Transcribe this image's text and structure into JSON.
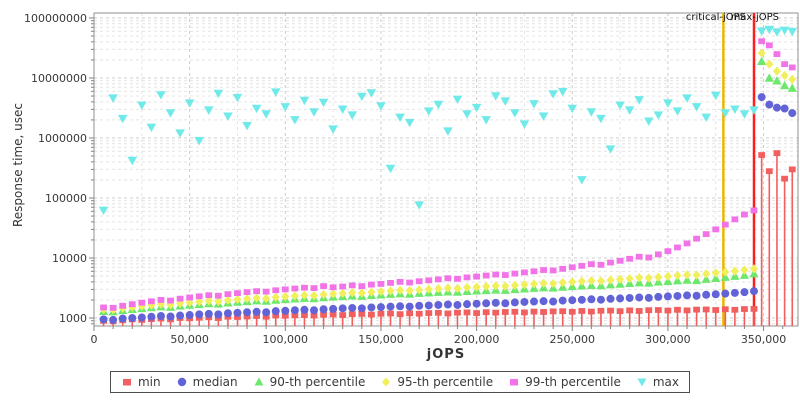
{
  "chart": {
    "y_axis_title": "Response time, usec",
    "x_axis_title": "jOPS",
    "x_ticks": [
      "0",
      "50,000",
      "100,000",
      "150,000",
      "200,000",
      "250,000",
      "300,000",
      "350,000"
    ],
    "y_ticks": [
      "1000",
      "10000",
      "100000",
      "1000000",
      "10000000",
      "100000000"
    ],
    "markers": {
      "critical": {
        "label": "critical-jOPS",
        "jops": 329000,
        "color": "#edb500"
      },
      "max": {
        "label": "max-jOPS",
        "jops": 345000,
        "color": "#fb1f1f"
      }
    },
    "colors": {
      "grid_major": "#cccccc",
      "grid_minor": "#e4e4e4",
      "plot_border": "#909090",
      "tick_text": "#383838"
    }
  },
  "chart_data": {
    "type": "scatter",
    "title": "",
    "xlabel": "jOPS",
    "ylabel": "Response time, usec",
    "y_scale": "log",
    "x_range": [
      0,
      368000
    ],
    "y_range_log": [
      736,
      121000000
    ],
    "x_major_tick_step": 50000,
    "x_minor_tick_step": 10000,
    "grid": true,
    "legend_position": "bottom",
    "vlines": [
      {
        "name": "critical-jOPS",
        "x": 329000,
        "color": "#edb500"
      },
      {
        "name": "max-jOPS",
        "x": 345000,
        "color": "#fb1f1f"
      }
    ],
    "x": [
      5000,
      10000,
      15000,
      20000,
      25000,
      30000,
      35000,
      40000,
      45000,
      50000,
      55000,
      60000,
      65000,
      70000,
      75000,
      80000,
      85000,
      90000,
      95000,
      100000,
      105000,
      110000,
      115000,
      120000,
      125000,
      130000,
      135000,
      140000,
      145000,
      150000,
      155000,
      160000,
      165000,
      170000,
      175000,
      180000,
      185000,
      190000,
      195000,
      200000,
      205000,
      210000,
      215000,
      220000,
      225000,
      230000,
      235000,
      240000,
      245000,
      250000,
      255000,
      260000,
      265000,
      270000,
      275000,
      280000,
      285000,
      290000,
      295000,
      300000,
      305000,
      310000,
      315000,
      320000,
      325000,
      330000,
      335000,
      340000,
      345000,
      349000,
      353000,
      357000,
      361000,
      365000
    ],
    "series": [
      {
        "name": "min",
        "marker": "square",
        "stem": true,
        "color": "#f25f5f",
        "values": [
          900,
          880,
          920,
          950,
          930,
          960,
          980,
          950,
          1000,
          990,
          1010,
          1030,
          1000,
          1050,
          1040,
          1060,
          1080,
          1050,
          1100,
          1090,
          1110,
          1120,
          1100,
          1130,
          1150,
          1120,
          1160,
          1170,
          1140,
          1180,
          1190,
          1160,
          1200,
          1180,
          1210,
          1220,
          1190,
          1230,
          1240,
          1210,
          1250,
          1230,
          1260,
          1270,
          1240,
          1280,
          1260,
          1290,
          1300,
          1270,
          1310,
          1280,
          1320,
          1330,
          1300,
          1340,
          1310,
          1350,
          1360,
          1330,
          1370,
          1340,
          1380,
          1390,
          1360,
          1400,
          1370,
          1410,
          1420,
          520000,
          280000,
          560000,
          210000,
          300000
        ]
      },
      {
        "name": "median",
        "marker": "circle",
        "stem": false,
        "color": "#6363d8",
        "values": [
          950,
          930,
          980,
          1000,
          1020,
          1050,
          1080,
          1060,
          1100,
          1120,
          1150,
          1170,
          1150,
          1200,
          1220,
          1250,
          1270,
          1250,
          1300,
          1320,
          1350,
          1370,
          1350,
          1400,
          1420,
          1450,
          1470,
          1450,
          1500,
          1520,
          1550,
          1570,
          1550,
          1600,
          1620,
          1650,
          1680,
          1650,
          1700,
          1730,
          1760,
          1790,
          1760,
          1820,
          1850,
          1880,
          1910,
          1880,
          1950,
          1980,
          2010,
          2050,
          2020,
          2090,
          2120,
          2160,
          2200,
          2170,
          2250,
          2290,
          2330,
          2380,
          2350,
          2440,
          2490,
          2550,
          2620,
          2700,
          2800,
          4800000,
          3600000,
          3200000,
          3100000,
          2600000
        ]
      },
      {
        "name": "90-th percentile",
        "marker": "triangle-up",
        "stem": false,
        "color": "#6de86d",
        "values": [
          1300,
          1280,
          1350,
          1400,
          1450,
          1500,
          1550,
          1520,
          1600,
          1650,
          1700,
          1750,
          1720,
          1800,
          1850,
          1900,
          1950,
          1920,
          2000,
          2050,
          2100,
          2150,
          2120,
          2200,
          2250,
          2300,
          2350,
          2320,
          2400,
          2450,
          2500,
          2550,
          2520,
          2600,
          2650,
          2700,
          2750,
          2720,
          2800,
          2850,
          2900,
          2950,
          2920,
          3000,
          3080,
          3150,
          3220,
          3180,
          3300,
          3380,
          3450,
          3520,
          3480,
          3600,
          3700,
          3800,
          3900,
          3850,
          4000,
          4100,
          4200,
          4300,
          4250,
          4450,
          4600,
          4800,
          5000,
          5200,
          5500,
          19000000,
          10000000,
          9000000,
          7500000,
          6800000
        ]
      },
      {
        "name": "95-th percentile",
        "marker": "diamond",
        "stem": false,
        "color": "#f1ef5a",
        "values": [
          1400,
          1380,
          1460,
          1520,
          1580,
          1640,
          1700,
          1660,
          1750,
          1810,
          1870,
          1930,
          1890,
          1980,
          2040,
          2100,
          2160,
          2120,
          2220,
          2280,
          2340,
          2400,
          2360,
          2460,
          2520,
          2580,
          2650,
          2610,
          2700,
          2760,
          2830,
          2900,
          2860,
          2950,
          3020,
          3090,
          3160,
          3120,
          3220,
          3290,
          3360,
          3440,
          3400,
          3500,
          3600,
          3700,
          3800,
          3750,
          3900,
          4000,
          4100,
          4200,
          4150,
          4300,
          4420,
          4550,
          4700,
          4640,
          4800,
          4950,
          5100,
          5250,
          5200,
          5450,
          5650,
          5850,
          6050,
          6300,
          6600,
          26000000,
          17000000,
          13000000,
          11000000,
          9500000
        ]
      },
      {
        "name": "99-th percentile",
        "marker": "square",
        "stem": false,
        "color": "#f272e8",
        "values": [
          1500,
          1480,
          1600,
          1700,
          1800,
          1900,
          2000,
          1950,
          2100,
          2200,
          2300,
          2400,
          2350,
          2500,
          2600,
          2700,
          2800,
          2750,
          2900,
          3000,
          3100,
          3200,
          3150,
          3400,
          3250,
          3350,
          3500,
          3400,
          3600,
          3700,
          3850,
          4000,
          3900,
          4100,
          4250,
          4400,
          4600,
          4500,
          4750,
          4900,
          5100,
          5300,
          5200,
          5500,
          5750,
          6000,
          6300,
          6200,
          6600,
          7000,
          7400,
          7900,
          7700,
          8400,
          9000,
          9700,
          10500,
          10200,
          11500,
          13000,
          15000,
          17500,
          21000,
          25000,
          30000,
          36000,
          44000,
          53000,
          62000,
          41000000,
          35000000,
          25000000,
          17000000,
          15000000
        ]
      },
      {
        "name": "max",
        "marker": "triangle-down",
        "stem": false,
        "color": "#70e9e9",
        "values": [
          62000,
          4600000,
          2100000,
          420000,
          3500000,
          1500000,
          5200000,
          2600000,
          1200000,
          3800000,
          900000,
          2900000,
          5500000,
          2300000,
          4700000,
          1600000,
          3100000,
          2500000,
          5800000,
          3300000,
          2000000,
          4200000,
          2700000,
          3900000,
          1400000,
          3000000,
          2400000,
          4900000,
          5600000,
          3400000,
          310000,
          2200000,
          1800000,
          76000,
          2800000,
          3600000,
          1300000,
          4400000,
          2500000,
          3200000,
          2000000,
          5000000,
          4100000,
          2600000,
          1700000,
          3700000,
          2300000,
          5400000,
          5900000,
          3100000,
          200000,
          2700000,
          2100000,
          650000,
          3500000,
          2900000,
          4300000,
          1900000,
          2400000,
          3800000,
          2800000,
          4600000,
          3300000,
          2200000,
          5100000,
          2600000,
          3000000,
          2500000,
          2900000,
          60000000,
          64000000,
          58000000,
          62000000,
          59000000
        ]
      }
    ]
  }
}
